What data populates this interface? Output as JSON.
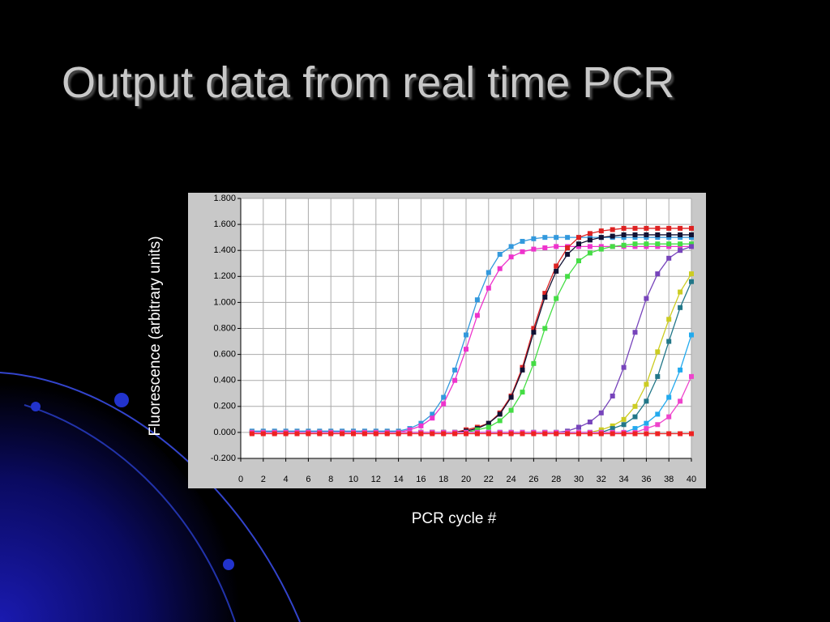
{
  "title": "Output data from real time PCR",
  "chart_data": {
    "type": "line",
    "ylabel": "Fluorescence (arbitrary units)",
    "xlabel": "PCR cycle #",
    "x": [
      1,
      2,
      3,
      4,
      5,
      6,
      7,
      8,
      9,
      10,
      11,
      12,
      13,
      14,
      15,
      16,
      17,
      18,
      19,
      20,
      21,
      22,
      23,
      24,
      25,
      26,
      27,
      28,
      29,
      30,
      31,
      32,
      33,
      34,
      35,
      36,
      37,
      38,
      39,
      40
    ],
    "xlim": [
      0,
      40
    ],
    "xticks": [
      0,
      2,
      4,
      6,
      8,
      10,
      12,
      14,
      16,
      18,
      20,
      22,
      24,
      26,
      28,
      30,
      32,
      34,
      36,
      38,
      40
    ],
    "ylim": [
      -0.2,
      1.8
    ],
    "yticks": [
      {
        "value": -0.2,
        "label": "-0.200"
      },
      {
        "value": 0,
        "label": "0.000"
      },
      {
        "value": 0.2,
        "label": "0.200"
      },
      {
        "value": 0.4,
        "label": "0.400"
      },
      {
        "value": 0.6,
        "label": "0.600"
      },
      {
        "value": 0.8,
        "label": "0.800"
      },
      {
        "value": 1.0,
        "label": "1.000"
      },
      {
        "value": 1.2,
        "label": "1.200"
      },
      {
        "value": 1.4,
        "label": "1.400"
      },
      {
        "value": 1.6,
        "label": "1.600"
      },
      {
        "value": 1.8,
        "label": "1.800"
      }
    ],
    "grid": true,
    "series": [
      {
        "color": "#3399dd",
        "values": [
          0.01,
          0.01,
          0.01,
          0.01,
          0.01,
          0.01,
          0.01,
          0.01,
          0.01,
          0.01,
          0.01,
          0.01,
          0.01,
          0.01,
          0.03,
          0.07,
          0.14,
          0.27,
          0.48,
          0.75,
          1.02,
          1.23,
          1.37,
          1.43,
          1.47,
          1.49,
          1.5,
          1.5,
          1.5,
          1.5,
          1.5,
          1.5,
          1.5,
          1.5,
          1.5,
          1.5,
          1.5,
          1.5,
          1.5,
          1.5
        ]
      },
      {
        "color": "#ee33cc",
        "values": [
          0,
          0,
          0,
          0,
          0,
          0,
          0,
          0,
          0,
          0,
          0,
          0,
          0,
          0,
          0.02,
          0.05,
          0.11,
          0.22,
          0.4,
          0.64,
          0.9,
          1.11,
          1.26,
          1.35,
          1.39,
          1.41,
          1.42,
          1.43,
          1.43,
          1.43,
          1.43,
          1.43,
          1.43,
          1.43,
          1.43,
          1.43,
          1.43,
          1.43,
          1.43,
          1.43
        ]
      },
      {
        "color": "#dd2222",
        "values": [
          0,
          0,
          0,
          0,
          0,
          0,
          0,
          0,
          0,
          0,
          0,
          0,
          0,
          0,
          0,
          0,
          0,
          0,
          0,
          0.02,
          0.04,
          0.07,
          0.15,
          0.28,
          0.5,
          0.8,
          1.07,
          1.28,
          1.42,
          1.5,
          1.53,
          1.55,
          1.56,
          1.57,
          1.57,
          1.57,
          1.57,
          1.57,
          1.57,
          1.57
        ]
      },
      {
        "color": "#111133",
        "values": [
          0,
          0,
          0,
          0,
          0,
          0,
          0,
          0,
          0,
          0,
          0,
          0,
          0,
          0,
          0,
          0,
          0,
          0,
          0,
          0.01,
          0.03,
          0.07,
          0.14,
          0.27,
          0.48,
          0.77,
          1.04,
          1.24,
          1.37,
          1.45,
          1.48,
          1.5,
          1.51,
          1.52,
          1.52,
          1.52,
          1.52,
          1.52,
          1.52,
          1.52
        ]
      },
      {
        "color": "#44dd44",
        "values": [
          0,
          0,
          0,
          0,
          0,
          0,
          0,
          0,
          0,
          0,
          0,
          0,
          0,
          0,
          0,
          0,
          0,
          0,
          0,
          0,
          0.02,
          0.04,
          0.09,
          0.17,
          0.31,
          0.53,
          0.8,
          1.03,
          1.2,
          1.32,
          1.38,
          1.41,
          1.43,
          1.44,
          1.45,
          1.45,
          1.45,
          1.45,
          1.45,
          1.45
        ]
      },
      {
        "color": "#7744bb",
        "values": [
          0,
          0,
          0,
          0,
          0,
          0,
          0,
          0,
          0,
          0,
          0,
          0,
          0,
          0,
          0,
          0,
          0,
          0,
          0,
          0,
          0,
          0,
          0,
          0,
          0,
          0,
          0,
          0,
          0.01,
          0.04,
          0.08,
          0.15,
          0.28,
          0.5,
          0.77,
          1.03,
          1.22,
          1.34,
          1.4,
          1.43
        ]
      },
      {
        "color": "#cccc22",
        "values": [
          0,
          0,
          0,
          0,
          0,
          0,
          0,
          0,
          0,
          0,
          0,
          0,
          0,
          0,
          0,
          0,
          0,
          0,
          0,
          0,
          0,
          0,
          0,
          0,
          0,
          0,
          0,
          0,
          0,
          0,
          0,
          0.02,
          0.05,
          0.1,
          0.2,
          0.37,
          0.62,
          0.87,
          1.08,
          1.22
        ]
      },
      {
        "color": "#227788",
        "values": [
          0,
          0,
          0,
          0,
          0,
          0,
          0,
          0,
          0,
          0,
          0,
          0,
          0,
          0,
          0,
          0,
          0,
          0,
          0,
          0,
          0,
          0,
          0,
          0,
          0,
          0,
          0,
          0,
          0,
          0,
          0,
          0,
          0.03,
          0.06,
          0.12,
          0.24,
          0.43,
          0.7,
          0.96,
          1.16
        ]
      },
      {
        "color": "#22aaee",
        "values": [
          0,
          0,
          0,
          0,
          0,
          0,
          0,
          0,
          0,
          0,
          0,
          0,
          0,
          0,
          0,
          0,
          0,
          0,
          0,
          0,
          0,
          0,
          0,
          0,
          0,
          0,
          0,
          0,
          0,
          0,
          0,
          0,
          0,
          0,
          0.03,
          0.07,
          0.14,
          0.27,
          0.48,
          0.75
        ]
      },
      {
        "color": "#ee44cc",
        "values": [
          0,
          0,
          0,
          0,
          0,
          0,
          0,
          0,
          0,
          0,
          0,
          0,
          0,
          0,
          0,
          0,
          0,
          0,
          0,
          0,
          0,
          0,
          0,
          0,
          0,
          0,
          0,
          0,
          0,
          0,
          0,
          0,
          0,
          0,
          0,
          0.03,
          0.06,
          0.12,
          0.24,
          0.43
        ]
      },
      {
        "color": "#ee2222",
        "values": [
          -0.01,
          -0.01,
          -0.01,
          -0.01,
          -0.01,
          -0.01,
          -0.01,
          -0.01,
          -0.01,
          -0.01,
          -0.01,
          -0.01,
          -0.01,
          -0.01,
          -0.01,
          -0.01,
          -0.01,
          -0.01,
          -0.01,
          -0.01,
          -0.01,
          -0.01,
          -0.01,
          -0.01,
          -0.01,
          -0.01,
          -0.01,
          -0.01,
          -0.01,
          -0.01,
          -0.01,
          -0.01,
          -0.01,
          -0.01,
          -0.01,
          -0.01,
          -0.01,
          -0.01,
          -0.01,
          -0.01
        ]
      }
    ]
  }
}
